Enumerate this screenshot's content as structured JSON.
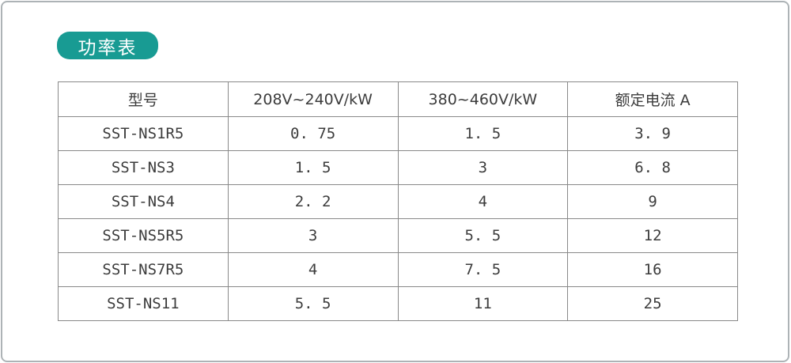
{
  "page": {
    "title_badge": "功率表",
    "badge_color": "#189b93",
    "frame_border_color": "#adb3b6",
    "table_border_color": "#898989"
  },
  "table": {
    "headers": [
      "型号",
      "208V~240V/kW",
      "380~460V/kW",
      "额定电流 A"
    ],
    "rows": [
      [
        "SST-NS1R5",
        "0. 75",
        "1. 5",
        "3. 9"
      ],
      [
        "SST-NS3",
        "1. 5",
        "3",
        "6. 8"
      ],
      [
        "SST-NS4",
        "2. 2",
        "4",
        "9"
      ],
      [
        "SST-NS5R5",
        "3",
        "5. 5",
        "12"
      ],
      [
        "SST-NS7R5",
        "4",
        "7. 5",
        "16"
      ],
      [
        "SST-NS11",
        "5. 5",
        "11",
        "25"
      ]
    ]
  }
}
